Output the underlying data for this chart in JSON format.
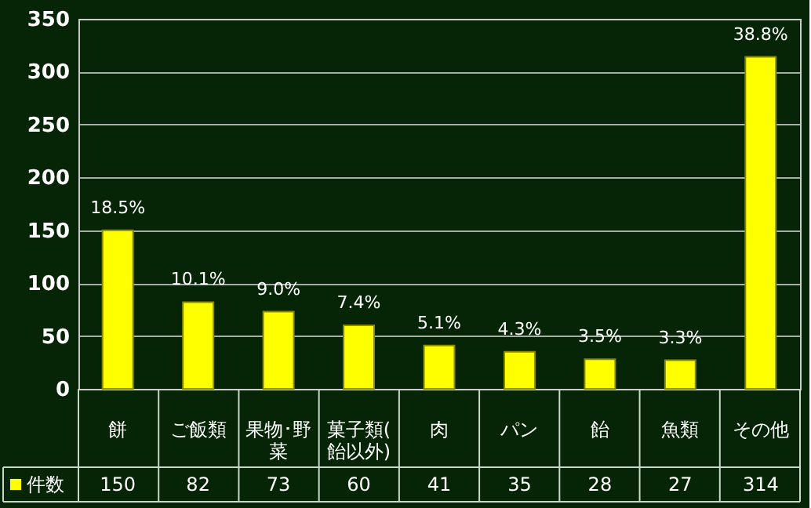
{
  "chart_data": {
    "type": "bar",
    "categories": [
      "餅",
      "ご飯類",
      "果物･野菜",
      "菓子類(飴以外)",
      "肉",
      "パン",
      "飴",
      "魚類",
      "その他"
    ],
    "series": [
      {
        "name": "件数",
        "color": "#ffff00",
        "values": [
          150,
          82,
          73,
          60,
          41,
          35,
          28,
          27,
          314
        ]
      }
    ],
    "value_labels": [
      "18.5%",
      "10.1%",
      "9.0%",
      "7.4%",
      "5.1%",
      "4.3%",
      "3.5%",
      "3.3%",
      "38.8%"
    ],
    "data_labels": true,
    "ylim": [
      0,
      350
    ],
    "yticks": [
      0,
      50,
      100,
      150,
      200,
      250,
      300,
      350
    ],
    "grid": "y",
    "legend": "bottom left"
  }
}
